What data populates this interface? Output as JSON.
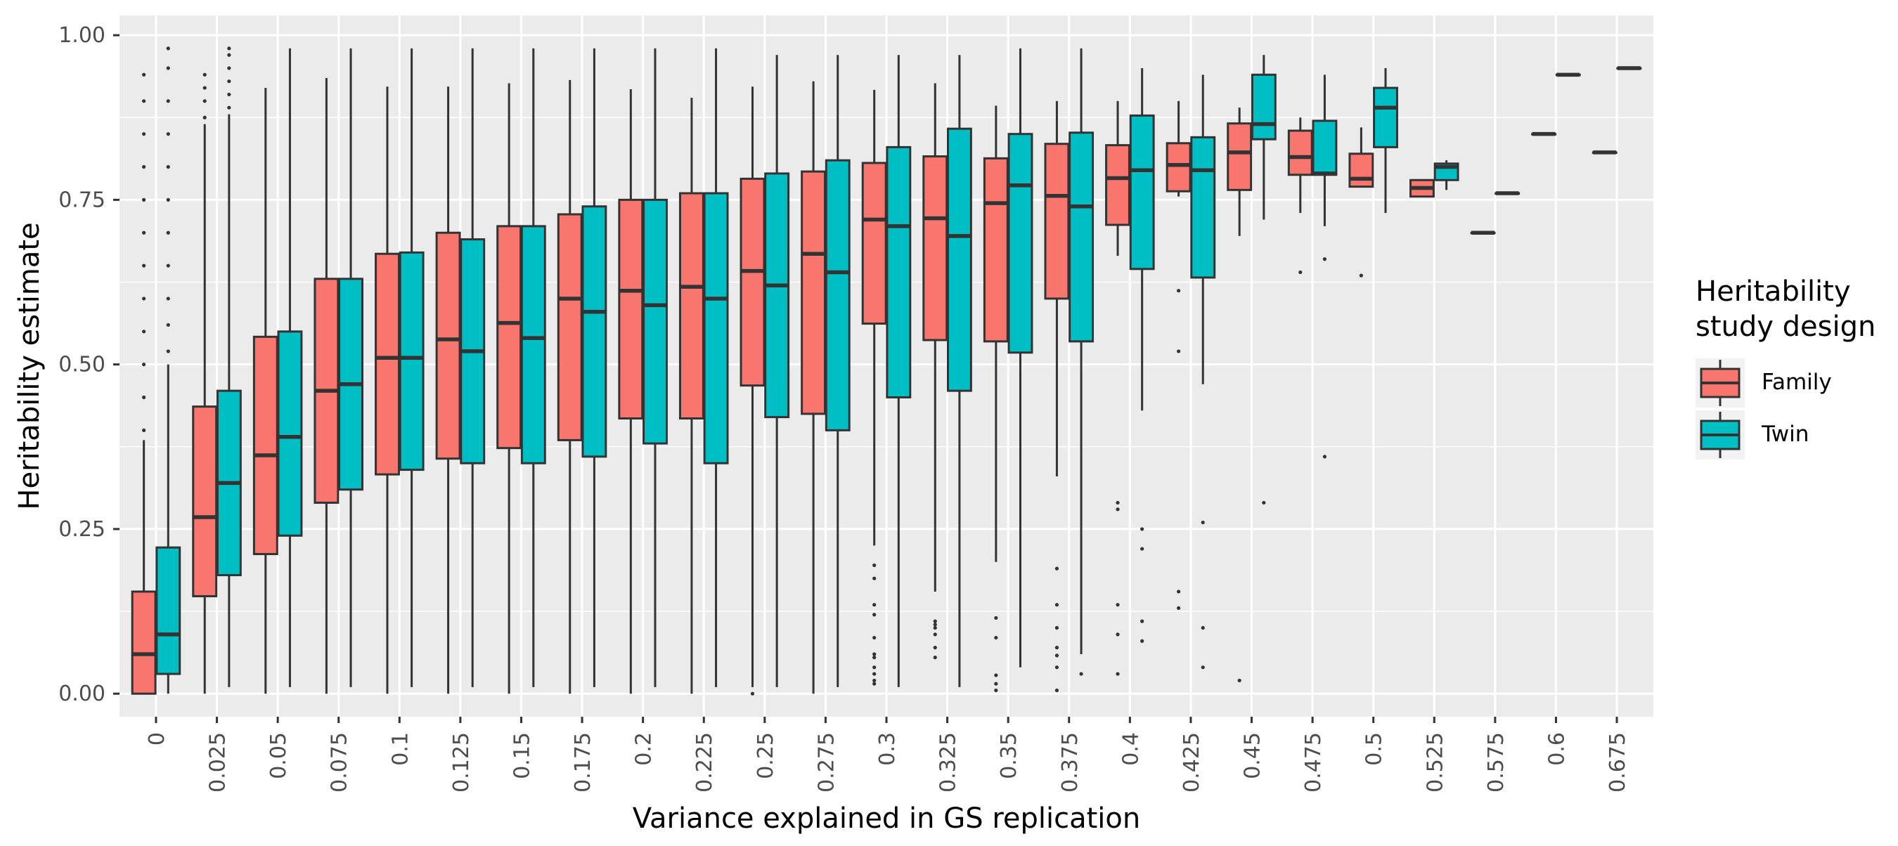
{
  "chart_data": {
    "type": "boxplot",
    "xlabel": "Variance explained in GS replication",
    "ylabel": "Heritability estimate",
    "ylim": [
      -0.035,
      1.03
    ],
    "y_ticks": [
      "0.00",
      "0.25",
      "0.50",
      "0.75",
      "1.00"
    ],
    "y_tick_values": [
      0,
      0.25,
      0.5,
      0.75,
      1.0
    ],
    "grid": true,
    "legend": {
      "title_lines": [
        "Heritability",
        "study design"
      ],
      "placement": "right",
      "entries": [
        {
          "label": "Family",
          "color": "#F8766D"
        },
        {
          "label": "Twin",
          "color": "#00BFC4"
        }
      ]
    },
    "categories": [
      "0",
      "0.025",
      "0.05",
      "0.075",
      "0.1",
      "0.125",
      "0.15",
      "0.175",
      "0.2",
      "0.225",
      "0.25",
      "0.275",
      "0.3",
      "0.325",
      "0.35",
      "0.375",
      "0.4",
      "0.425",
      "0.45",
      "0.475",
      "0.5",
      "0.525",
      "0.575",
      "0.6",
      "0.675"
    ],
    "series": [
      {
        "name": "Family",
        "color": "#F8766D",
        "boxes": [
          {
            "cat": 0,
            "min": 0.0,
            "q1": 0.0,
            "median": 0.06,
            "q3": 0.155,
            "max": 0.385,
            "outliers": [
              0.4,
              0.45,
              0.5,
              0.55,
              0.6,
              0.65,
              0.7,
              0.75,
              0.8,
              0.85,
              0.9,
              0.94
            ]
          },
          {
            "cat": 1,
            "min": 0.0,
            "q1": 0.148,
            "median": 0.268,
            "q3": 0.436,
            "max": 0.865,
            "outliers": [
              0.875,
              0.9,
              0.92,
              0.94
            ]
          },
          {
            "cat": 2,
            "min": 0.0,
            "q1": 0.212,
            "median": 0.362,
            "q3": 0.542,
            "max": 0.92,
            "outliers": []
          },
          {
            "cat": 3,
            "min": 0.0,
            "q1": 0.29,
            "median": 0.46,
            "q3": 0.63,
            "max": 0.935,
            "outliers": []
          },
          {
            "cat": 4,
            "min": 0.0,
            "q1": 0.333,
            "median": 0.51,
            "q3": 0.668,
            "max": 0.922,
            "outliers": []
          },
          {
            "cat": 5,
            "min": 0.0,
            "q1": 0.357,
            "median": 0.538,
            "q3": 0.7,
            "max": 0.922,
            "outliers": []
          },
          {
            "cat": 6,
            "min": 0.0,
            "q1": 0.373,
            "median": 0.563,
            "q3": 0.71,
            "max": 0.927,
            "outliers": []
          },
          {
            "cat": 7,
            "min": 0.0,
            "q1": 0.385,
            "median": 0.6,
            "q3": 0.728,
            "max": 0.932,
            "outliers": []
          },
          {
            "cat": 8,
            "min": 0.0,
            "q1": 0.418,
            "median": 0.612,
            "q3": 0.75,
            "max": 0.918,
            "outliers": []
          },
          {
            "cat": 9,
            "min": 0.0,
            "q1": 0.418,
            "median": 0.618,
            "q3": 0.76,
            "max": 0.905,
            "outliers": []
          },
          {
            "cat": 10,
            "min": 0.01,
            "q1": 0.468,
            "median": 0.642,
            "q3": 0.782,
            "max": 0.922,
            "outliers": [
              0.0
            ]
          },
          {
            "cat": 11,
            "min": 0.0,
            "q1": 0.425,
            "median": 0.668,
            "q3": 0.793,
            "max": 0.93,
            "outliers": []
          },
          {
            "cat": 12,
            "min": 0.225,
            "q1": 0.562,
            "median": 0.72,
            "q3": 0.806,
            "max": 0.917,
            "outliers": [
              0.015,
              0.02,
              0.03,
              0.04,
              0.055,
              0.06,
              0.085,
              0.12,
              0.135,
              0.175,
              0.195
            ]
          },
          {
            "cat": 13,
            "min": 0.155,
            "q1": 0.537,
            "median": 0.722,
            "q3": 0.816,
            "max": 0.927,
            "outliers": [
              0.055,
              0.07,
              0.09,
              0.1,
              0.105,
              0.11
            ]
          },
          {
            "cat": 14,
            "min": 0.2,
            "q1": 0.535,
            "median": 0.745,
            "q3": 0.813,
            "max": 0.893,
            "outliers": [
              0.005,
              0.015,
              0.028,
              0.085,
              0.115
            ]
          },
          {
            "cat": 15,
            "min": 0.33,
            "q1": 0.6,
            "median": 0.756,
            "q3": 0.835,
            "max": 0.9,
            "outliers": [
              0.005,
              0.04,
              0.058,
              0.07,
              0.1,
              0.135,
              0.19
            ]
          },
          {
            "cat": 16,
            "min": 0.665,
            "q1": 0.712,
            "median": 0.783,
            "q3": 0.833,
            "max": 0.9,
            "outliers": [
              0.03,
              0.09,
              0.135,
              0.28,
              0.29
            ]
          },
          {
            "cat": 17,
            "min": 0.755,
            "q1": 0.763,
            "median": 0.803,
            "q3": 0.836,
            "max": 0.9,
            "outliers": [
              0.13,
              0.155,
              0.52,
              0.612
            ]
          },
          {
            "cat": 18,
            "min": 0.695,
            "q1": 0.765,
            "median": 0.822,
            "q3": 0.866,
            "max": 0.89,
            "outliers": [
              0.02
            ]
          },
          {
            "cat": 19,
            "min": 0.73,
            "q1": 0.788,
            "median": 0.815,
            "q3": 0.855,
            "max": 0.875,
            "outliers": [
              0.64
            ]
          },
          {
            "cat": 20,
            "min": 0.77,
            "q1": 0.77,
            "median": 0.782,
            "q3": 0.82,
            "max": 0.86,
            "outliers": [
              0.635
            ]
          },
          {
            "cat": 21,
            "min": 0.755,
            "q1": 0.755,
            "median": 0.768,
            "q3": 0.78,
            "max": 0.78,
            "outliers": []
          },
          {
            "cat": 22,
            "min": 0.7,
            "q1": 0.7,
            "median": 0.7,
            "q3": 0.7,
            "max": 0.7,
            "outliers": []
          },
          {
            "cat": 23,
            "min": 0.85,
            "q1": 0.85,
            "median": 0.85,
            "q3": 0.85,
            "max": 0.85,
            "outliers": []
          },
          {
            "cat": 24,
            "min": 0.822,
            "q1": 0.822,
            "median": 0.822,
            "q3": 0.822,
            "max": 0.822,
            "outliers": []
          }
        ]
      },
      {
        "name": "Twin",
        "color": "#00BFC4",
        "boxes": [
          {
            "cat": 0,
            "min": 0.0,
            "q1": 0.03,
            "median": 0.09,
            "q3": 0.222,
            "max": 0.5,
            "outliers": [
              0.52,
              0.56,
              0.6,
              0.65,
              0.7,
              0.75,
              0.8,
              0.85,
              0.9,
              0.95,
              0.98
            ]
          },
          {
            "cat": 1,
            "min": 0.01,
            "q1": 0.18,
            "median": 0.32,
            "q3": 0.46,
            "max": 0.88,
            "outliers": [
              0.89,
              0.91,
              0.93,
              0.95,
              0.97,
              0.98
            ]
          },
          {
            "cat": 2,
            "min": 0.01,
            "q1": 0.24,
            "median": 0.39,
            "q3": 0.55,
            "max": 0.98,
            "outliers": []
          },
          {
            "cat": 3,
            "min": 0.01,
            "q1": 0.31,
            "median": 0.47,
            "q3": 0.63,
            "max": 0.98,
            "outliers": []
          },
          {
            "cat": 4,
            "min": 0.01,
            "q1": 0.34,
            "median": 0.51,
            "q3": 0.67,
            "max": 0.98,
            "outliers": []
          },
          {
            "cat": 5,
            "min": 0.01,
            "q1": 0.35,
            "median": 0.52,
            "q3": 0.69,
            "max": 0.98,
            "outliers": []
          },
          {
            "cat": 6,
            "min": 0.01,
            "q1": 0.35,
            "median": 0.54,
            "q3": 0.71,
            "max": 0.98,
            "outliers": []
          },
          {
            "cat": 7,
            "min": 0.01,
            "q1": 0.36,
            "median": 0.58,
            "q3": 0.74,
            "max": 0.98,
            "outliers": []
          },
          {
            "cat": 8,
            "min": 0.01,
            "q1": 0.38,
            "median": 0.59,
            "q3": 0.75,
            "max": 0.98,
            "outliers": []
          },
          {
            "cat": 9,
            "min": 0.01,
            "q1": 0.35,
            "median": 0.6,
            "q3": 0.76,
            "max": 0.98,
            "outliers": []
          },
          {
            "cat": 10,
            "min": 0.01,
            "q1": 0.42,
            "median": 0.62,
            "q3": 0.79,
            "max": 0.97,
            "outliers": []
          },
          {
            "cat": 11,
            "min": 0.01,
            "q1": 0.4,
            "median": 0.64,
            "q3": 0.81,
            "max": 0.97,
            "outliers": []
          },
          {
            "cat": 12,
            "min": 0.01,
            "q1": 0.45,
            "median": 0.71,
            "q3": 0.83,
            "max": 0.97,
            "outliers": []
          },
          {
            "cat": 13,
            "min": 0.01,
            "q1": 0.46,
            "median": 0.695,
            "q3": 0.858,
            "max": 0.97,
            "outliers": []
          },
          {
            "cat": 14,
            "min": 0.04,
            "q1": 0.518,
            "median": 0.772,
            "q3": 0.85,
            "max": 0.98,
            "outliers": []
          },
          {
            "cat": 15,
            "min": 0.06,
            "q1": 0.535,
            "median": 0.74,
            "q3": 0.852,
            "max": 0.98,
            "outliers": [
              0.03
            ]
          },
          {
            "cat": 16,
            "min": 0.43,
            "q1": 0.645,
            "median": 0.795,
            "q3": 0.878,
            "max": 0.95,
            "outliers": [
              0.08,
              0.11,
              0.22,
              0.25
            ]
          },
          {
            "cat": 17,
            "min": 0.47,
            "q1": 0.632,
            "median": 0.795,
            "q3": 0.845,
            "max": 0.94,
            "outliers": [
              0.04,
              0.1,
              0.26
            ]
          },
          {
            "cat": 18,
            "min": 0.72,
            "q1": 0.842,
            "median": 0.865,
            "q3": 0.94,
            "max": 0.97,
            "outliers": [
              0.29
            ]
          },
          {
            "cat": 19,
            "min": 0.71,
            "q1": 0.788,
            "median": 0.79,
            "q3": 0.87,
            "max": 0.94,
            "outliers": [
              0.36,
              0.66
            ]
          },
          {
            "cat": 20,
            "min": 0.73,
            "q1": 0.83,
            "median": 0.89,
            "q3": 0.92,
            "max": 0.95,
            "outliers": []
          },
          {
            "cat": 21,
            "min": 0.765,
            "q1": 0.78,
            "median": 0.8,
            "q3": 0.805,
            "max": 0.81,
            "outliers": []
          },
          {
            "cat": 22,
            "min": 0.76,
            "q1": 0.76,
            "median": 0.76,
            "q3": 0.76,
            "max": 0.76,
            "outliers": []
          },
          {
            "cat": 23,
            "min": 0.94,
            "q1": 0.94,
            "median": 0.94,
            "q3": 0.94,
            "max": 0.94,
            "outliers": []
          },
          {
            "cat": 24,
            "min": 0.95,
            "q1": 0.95,
            "median": 0.95,
            "q3": 0.95,
            "max": 0.95,
            "outliers": []
          }
        ]
      }
    ]
  }
}
